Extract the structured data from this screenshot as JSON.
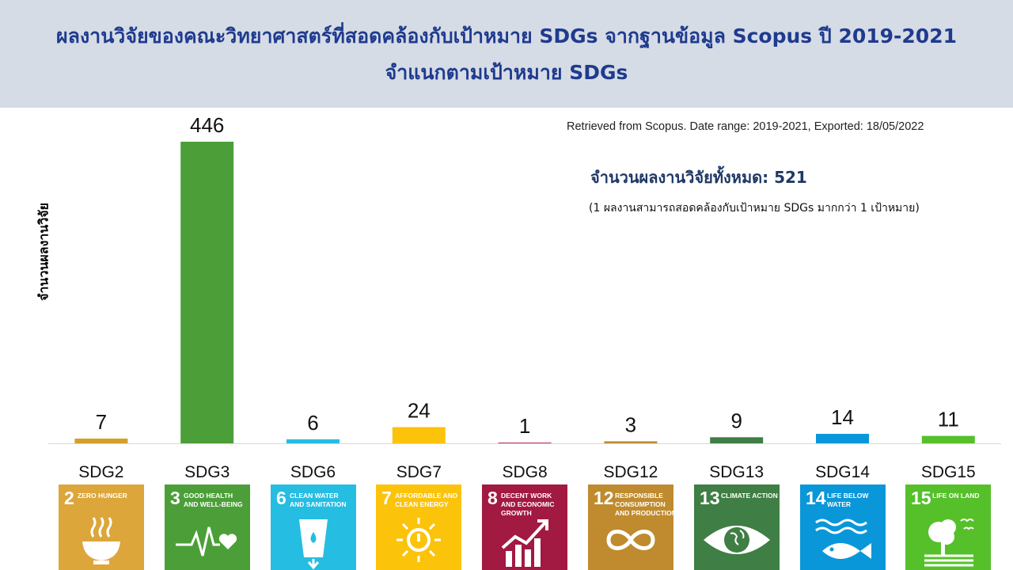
{
  "header": {
    "title_line1": "ผลงานวิจัยของคณะวิทยาศาสตร์ที่สอดคล้องกับเป้าหมาย SDGs จากฐานข้อมูล Scopus ปี 2019-2021",
    "title_line2": "จำแนกตามเป้าหมาย SDGs"
  },
  "notes": {
    "source": "Retrieved from Scopus. Date range: 2019-2021, Exported: 18/05/2022",
    "total": "จำนวนผลงานวิจัยทั้งหมด: 521",
    "total_note": "(1 ผลงานสามารถสอดคล้องกับเป้าหมาย SDGs มากกว่า 1 เป้าหมาย)"
  },
  "chart_data": {
    "type": "bar",
    "title": "ผลงานวิจัยของคณะวิทยาศาสตร์ที่สอดคล้องกับเป้าหมาย SDGs จากฐานข้อมูล Scopus ปี 2019-2021 จำแนกตามเป้าหมาย SDGs",
    "ylabel": "จำนวนผลงานวิจัย",
    "xlabel": "",
    "categories": [
      "SDG2",
      "SDG3",
      "SDG6",
      "SDG7",
      "SDG8",
      "SDG12",
      "SDG13",
      "SDG14",
      "SDG15"
    ],
    "values": [
      7,
      446,
      6,
      24,
      1,
      3,
      9,
      14,
      11
    ],
    "bar_colors": [
      "#d3a029",
      "#4c9f38",
      "#26bde2",
      "#fcc30b",
      "#a21942",
      "#bf8b2e",
      "#3f7e44",
      "#0a97d9",
      "#56c02b"
    ],
    "ylim": [
      0,
      446
    ],
    "grid": false,
    "legend": "none",
    "data_labels": true
  },
  "sdg_tiles": [
    {
      "number": "2",
      "text": "Zero hunger",
      "color": "#dda63a",
      "icon": "bowl-icon"
    },
    {
      "number": "3",
      "text": "Good health and well-being",
      "color": "#4c9f38",
      "icon": "heartbeat-icon"
    },
    {
      "number": "6",
      "text": "Clean water and sanitation",
      "color": "#26bde2",
      "icon": "water-glass-icon"
    },
    {
      "number": "7",
      "text": "Affordable and clean energy",
      "color": "#fcc30b",
      "icon": "sun-power-icon"
    },
    {
      "number": "8",
      "text": "Decent work and economic growth",
      "color": "#a21942",
      "icon": "growth-chart-icon"
    },
    {
      "number": "12",
      "text": "Responsible consumption and production",
      "color": "#bf8b2e",
      "icon": "infinity-icon"
    },
    {
      "number": "13",
      "text": "Climate action",
      "color": "#3f7e44",
      "icon": "eye-globe-icon"
    },
    {
      "number": "14",
      "text": "Life below water",
      "color": "#0a97d9",
      "icon": "fish-icon"
    },
    {
      "number": "15",
      "text": "Life on land",
      "color": "#56c02b",
      "icon": "tree-birds-icon"
    }
  ]
}
